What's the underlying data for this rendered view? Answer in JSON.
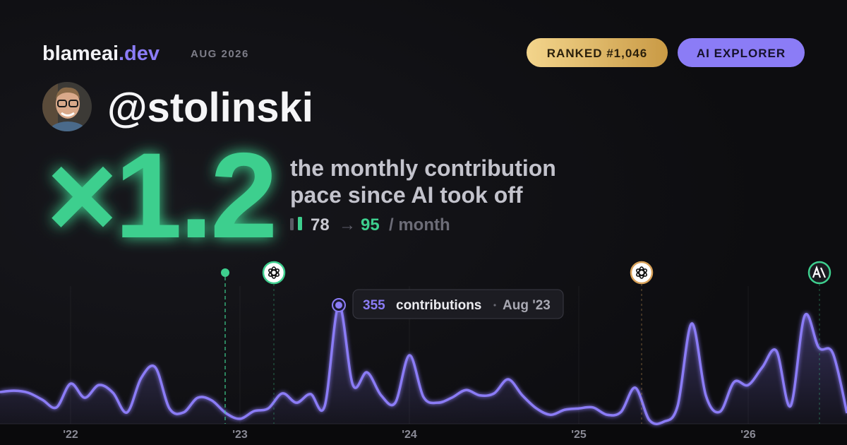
{
  "header": {
    "brand": "blameai",
    "brand_tld": ".dev",
    "period": "AUG 2026",
    "rank_badge": "RANKED #1,046",
    "tier_badge": "AI EXPLORER"
  },
  "profile": {
    "handle": "@stolinski"
  },
  "stat": {
    "multiplier": "×1.2",
    "caption_line1": "the monthly contribution",
    "caption_line2": "pace since AI took off",
    "before": 78,
    "arrow": "→",
    "after": 95,
    "unit": "/ month"
  },
  "chart_data": {
    "type": "area",
    "color": "#8b7cf6",
    "categories": [
      null,
      null,
      null,
      null,
      null,
      "'22",
      null,
      null,
      null,
      null,
      null,
      null,
      null,
      null,
      null,
      null,
      null,
      "'23",
      null,
      null,
      null,
      null,
      null,
      null,
      null,
      null,
      null,
      null,
      null,
      "'24",
      null,
      null,
      null,
      null,
      null,
      null,
      null,
      null,
      null,
      null,
      null,
      "'25",
      null,
      null,
      null,
      null,
      null,
      null,
      null,
      null,
      null,
      null,
      null,
      "'26",
      null,
      null,
      null,
      null,
      null,
      null,
      null
    ],
    "values": [
      95,
      99,
      93,
      72,
      49,
      120,
      78,
      116,
      93,
      34,
      137,
      169,
      46,
      34,
      78,
      70,
      32,
      15,
      38,
      46,
      91,
      63,
      89,
      53,
      355,
      116,
      154,
      85,
      63,
      205,
      80,
      63,
      78,
      101,
      85,
      91,
      133,
      85,
      46,
      27,
      42,
      46,
      49,
      27,
      36,
      108,
      11,
      6,
      53,
      300,
      85,
      36,
      125,
      116,
      169,
      218,
      53,
      323,
      228,
      211,
      32
    ],
    "tooltip_label": "contributions",
    "tooltip_date": "Aug '23"
  }
}
